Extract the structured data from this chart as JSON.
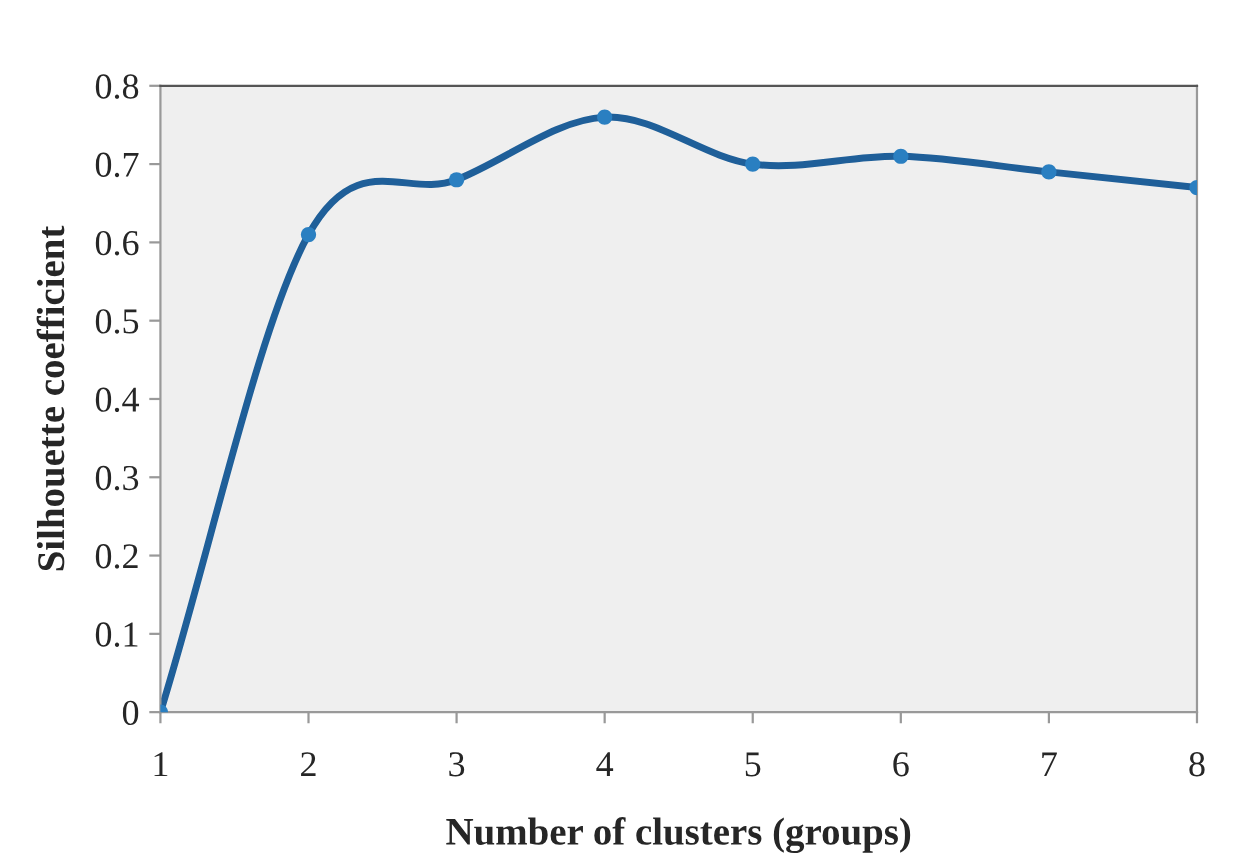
{
  "chart_data": {
    "type": "line",
    "xlabel": "Number of clusters (groups)",
    "ylabel": "Silhouette coefficient",
    "x": [
      1,
      2,
      3,
      4,
      5,
      6,
      7,
      8
    ],
    "series": [
      {
        "color": "#1f5f99",
        "values": [
          0,
          0.61,
          0.68,
          0.76,
          0.7,
          0.71,
          0.69,
          0.67
        ]
      }
    ],
    "xlim": [
      1,
      8
    ],
    "xticks": [
      1,
      2,
      3,
      4,
      5,
      6,
      7,
      8
    ],
    "ylim": [
      0,
      0.8
    ],
    "yticks": [
      0,
      0.1,
      0.2,
      0.3,
      0.4,
      0.5,
      0.6,
      0.7,
      0.8
    ],
    "grid": false,
    "marker": "circle",
    "line_style": "solid"
  }
}
